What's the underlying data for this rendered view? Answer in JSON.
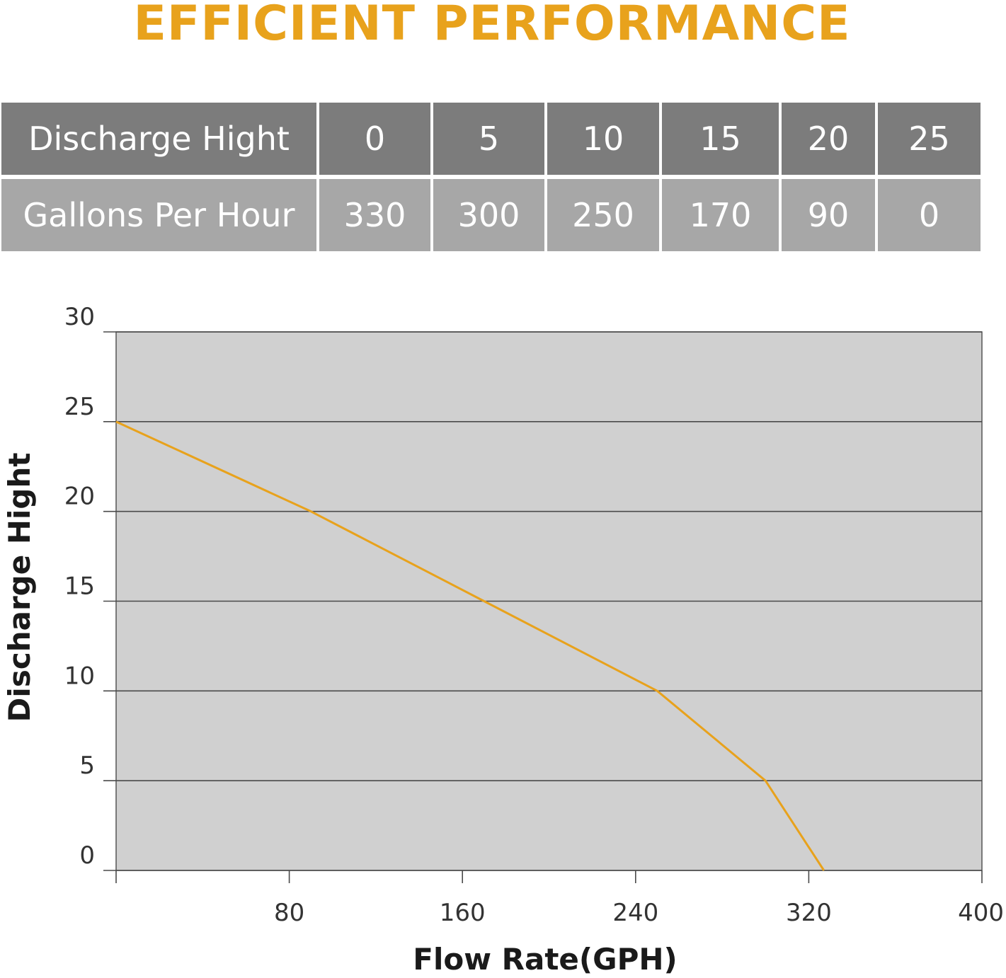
{
  "title": "EFFICIENT PERFORMANCE",
  "table": {
    "row1_label": "Discharge Hight",
    "row1_values": [
      "0",
      "5",
      "10",
      "15",
      "20",
      "25"
    ],
    "row2_label": "Gallons Per Hour",
    "row2_values": [
      "330",
      "300",
      "250",
      "170",
      "90",
      "0"
    ]
  },
  "colors": {
    "accent": "#e8a21c",
    "plot_bg": "#d0d0d0",
    "row1": "#7c7c7c",
    "row2": "#a7a7a7"
  },
  "chart_data": {
    "type": "line",
    "title": "",
    "xlabel": "Flow Rate(GPH)",
    "ylabel": "Discharge Hight",
    "xlim": [
      0,
      400
    ],
    "ylim": [
      0,
      30
    ],
    "xticks": [
      80,
      160,
      240,
      320,
      400
    ],
    "yticks": [
      0,
      5,
      10,
      15,
      20,
      25,
      30
    ],
    "grid": true,
    "series": [
      {
        "color": "#e8a21c",
        "x": [
          0,
          90,
          170,
          250,
          300,
          327
        ],
        "y": [
          25,
          20,
          15,
          10,
          5,
          0
        ]
      }
    ]
  }
}
